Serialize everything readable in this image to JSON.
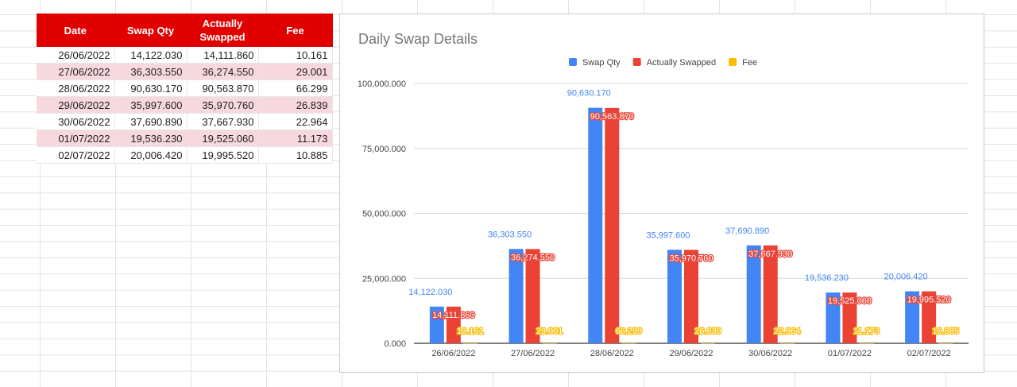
{
  "table": {
    "headers": [
      "Date",
      "Swap Qty",
      "Actually Swapped",
      "Fee"
    ],
    "rows": [
      [
        "26/06/2022",
        "14,122.030",
        "14,111.860",
        "10.161"
      ],
      [
        "27/06/2022",
        "36,303.550",
        "36,274.550",
        "29.001"
      ],
      [
        "28/06/2022",
        "90,630.170",
        "90,563.870",
        "66.299"
      ],
      [
        "29/06/2022",
        "35,997.600",
        "35,970.760",
        "26.839"
      ],
      [
        "30/06/2022",
        "37,690.890",
        "37,667.930",
        "22.964"
      ],
      [
        "01/07/2022",
        "19,536.230",
        "19,525.060",
        "11.173"
      ],
      [
        "02/07/2022",
        "20,006.420",
        "19,995.520",
        "10.885"
      ]
    ],
    "header_color": "#e00000",
    "band_color": "#f8d8df"
  },
  "chart_data": {
    "type": "bar",
    "title": "Daily Swap Details",
    "categories": [
      "26/06/2022",
      "27/06/2022",
      "28/06/2022",
      "29/06/2022",
      "30/06/2022",
      "01/07/2022",
      "02/07/2022"
    ],
    "series": [
      {
        "name": "Swap Qty",
        "color": "#4285f4",
        "values": [
          14122.03,
          36303.55,
          90630.17,
          35997.6,
          37690.89,
          19536.23,
          20006.42
        ],
        "labels": [
          "14,122.030",
          "36,303.550",
          "90,630.170",
          "35,997.600",
          "37,690.890",
          "19,536.230",
          "20,006.420"
        ]
      },
      {
        "name": "Actually Swapped",
        "color": "#ea4335",
        "values": [
          14111.86,
          36274.55,
          90563.87,
          35970.76,
          37667.93,
          19525.06,
          19995.52
        ],
        "labels": [
          "14,111.860",
          "36,274.550",
          "90,563.870",
          "35,970.760",
          "37,667.930",
          "19,525.060",
          "19,995.520"
        ]
      },
      {
        "name": "Fee",
        "color": "#fbbc04",
        "values": [
          10.161,
          29.001,
          66.299,
          26.839,
          22.964,
          11.173,
          10.885
        ],
        "labels": [
          "10.161",
          "29.001",
          "66.299",
          "26.839",
          "22.964",
          "11.173",
          "10.885"
        ]
      }
    ],
    "ylim": [
      0,
      100000
    ],
    "yticks": [
      0,
      25000,
      50000,
      75000,
      100000
    ],
    "ytick_labels": [
      "0.000",
      "25,000.000",
      "50,000.000",
      "75,000.000",
      "100,000.000"
    ],
    "grid": true,
    "legend_position": "top"
  }
}
